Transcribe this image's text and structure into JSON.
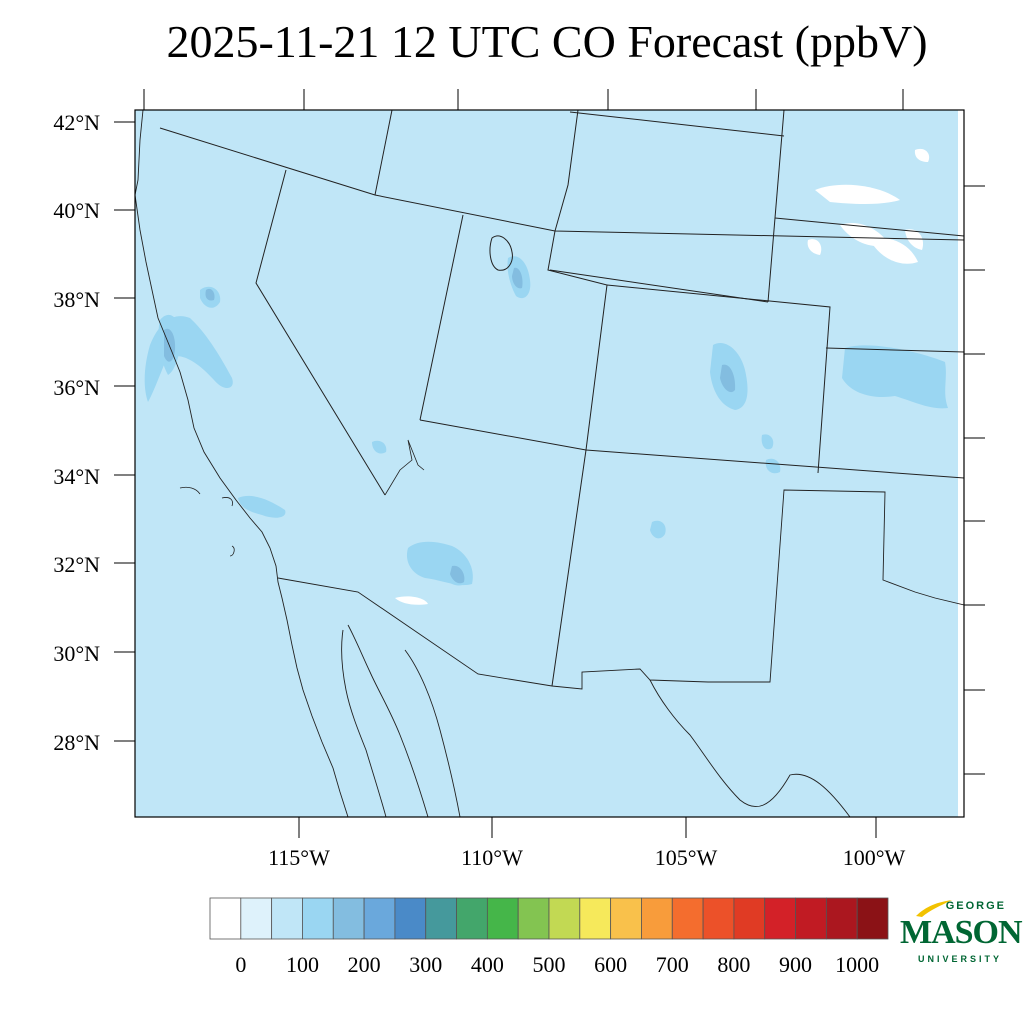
{
  "title": "2025-11-21 12 UTC CO Forecast (ppbV)",
  "map": {
    "lat_labels": [
      "42°N",
      "40°N",
      "38°N",
      "36°N",
      "34°N",
      "32°N",
      "30°N",
      "28°N"
    ],
    "lon_labels": [
      "115°W",
      "110°W",
      "105°W",
      "100°W"
    ],
    "background_color": "#c0e6f7",
    "enhanced_color": "#9ad6f2",
    "hotspot_color": "#83bde0"
  },
  "colorbar": {
    "labels": [
      "0",
      "100",
      "200",
      "300",
      "400",
      "500",
      "600",
      "700",
      "800",
      "900",
      "1000"
    ],
    "colors": [
      "#ffffff",
      "#def2fb",
      "#c0e6f7",
      "#9ad6f2",
      "#83bde0",
      "#6aa8dc",
      "#4a8ac8",
      "#45999c",
      "#43a66b",
      "#45b649",
      "#83c451",
      "#c2d953",
      "#f6e95b",
      "#f9c14b",
      "#f89c3b",
      "#f46d2e",
      "#ec5129",
      "#e03b24",
      "#d32128",
      "#c11b23",
      "#ab171f",
      "#8b1216"
    ]
  },
  "logo": {
    "top": "GEORGE",
    "main": "MASON",
    "sub": "UNIVERSITY",
    "color": "#006633",
    "accent": "#f2c200"
  }
}
